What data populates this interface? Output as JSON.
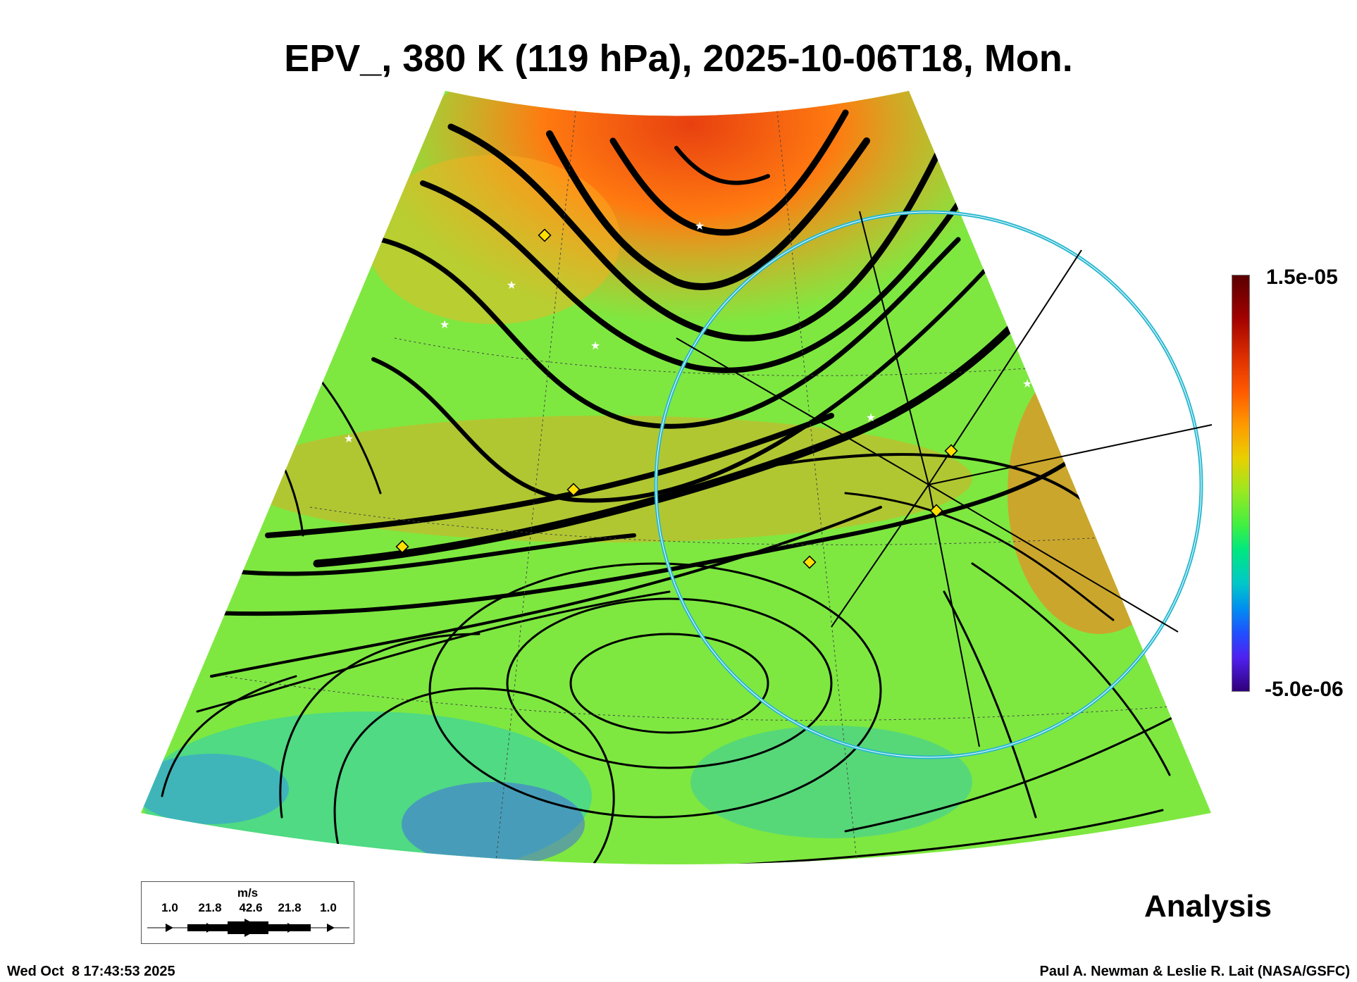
{
  "title": "EPV_, 380 K (119 hPa), 2025-10-06T18, Mon.",
  "colorbar": {
    "max_label": "1.5e-05",
    "min_label": "-5.0e-06",
    "colors": [
      "#5a0000",
      "#a00000",
      "#e03000",
      "#ff5a00",
      "#ff9a00",
      "#e8d000",
      "#9ae820",
      "#40f040",
      "#00e880",
      "#00c8c8",
      "#0090f0",
      "#2050ff",
      "#5020f0",
      "#30007a"
    ]
  },
  "legend": {
    "unit": "m/s",
    "values": [
      "1.0",
      "21.8",
      "42.6",
      "21.8",
      "1.0"
    ]
  },
  "label": "Analysis",
  "timestamp": "Wed Oct  8 17:43:53 2025",
  "credit": "Paul A. Newman & Leslie R. Lait (NASA/GSFC)",
  "chart_data": {
    "type": "heatmap",
    "title": "EPV_, 380 K (119 hPa), 2025-10-06T18, Mon.",
    "variable": "EPV_",
    "colorbar_range": [
      -5e-06,
      1.5e-05
    ],
    "overlay": "wind streamlines (m/s)",
    "wind_legend_ms": [
      1.0,
      21.8,
      42.6,
      21.8,
      1.0
    ]
  }
}
